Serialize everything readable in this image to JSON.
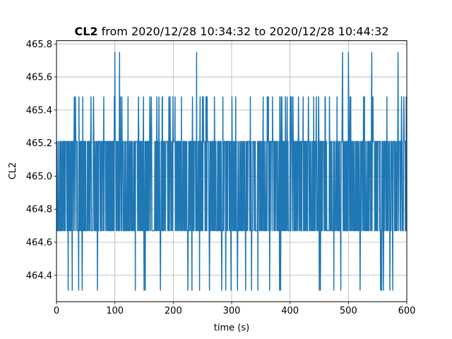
{
  "chart_data": {
    "type": "line",
    "title": {
      "bold_part": "CL2",
      "rest": " from 2020/12/28 10:34:32 to 2020/12/28 10:44:32"
    },
    "xlabel": "time (s)",
    "ylabel": "CL2",
    "xlim": [
      0,
      600
    ],
    "ylim": [
      464.24,
      465.82
    ],
    "xticks": [
      0,
      100,
      200,
      300,
      400,
      500,
      600
    ],
    "yticks": [
      464.4,
      464.6,
      464.8,
      465.0,
      465.2,
      465.4,
      465.6,
      465.8
    ],
    "xtick_labels": [
      "0",
      "100",
      "200",
      "300",
      "400",
      "500",
      "600"
    ],
    "ytick_labels": [
      "464.4",
      "464.6",
      "464.8",
      "465.0",
      "465.2",
      "465.4",
      "465.6",
      "465.8"
    ],
    "grid": true,
    "series": [
      {
        "color": "#1f77b4",
        "sample_interval_s": 0.5,
        "dense_band": [
          464.67,
          465.21
        ],
        "levels": [
          464.31,
          464.67,
          465.21,
          465.48,
          465.75
        ],
        "spikes_high": [
          100,
          108,
          240,
          490,
          500,
          540,
          585
        ],
        "spikes_low": [
          20,
          27,
          38,
          44,
          70,
          135,
          150,
          152,
          178,
          225,
          232,
          240,
          245,
          262,
          283,
          290,
          299,
          310,
          324,
          334,
          345,
          365,
          382,
          384,
          450,
          452,
          475,
          487,
          520,
          555,
          557,
          560,
          571,
          576
        ]
      }
    ]
  }
}
